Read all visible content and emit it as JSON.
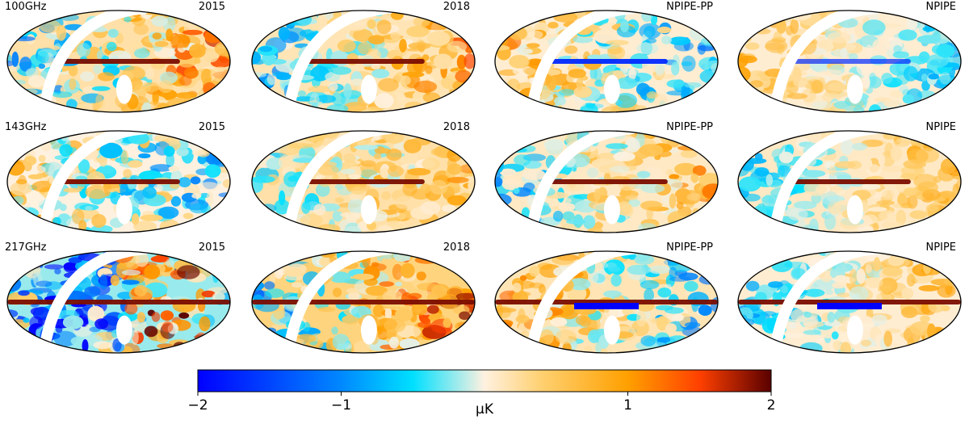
{
  "panels": {
    "rows": [
      {
        "frequency": "100GHz"
      },
      {
        "frequency": "143GHz"
      },
      {
        "frequency": "217GHz"
      }
    ],
    "columns": [
      {
        "release": "2015"
      },
      {
        "release": "2018"
      },
      {
        "release": "NPIPE-PP"
      },
      {
        "release": "NPIPE"
      }
    ],
    "projection": "mollweide"
  },
  "colorbar": {
    "min": -2,
    "max": 2,
    "ticks": [
      {
        "label": "−2",
        "value": -2
      },
      {
        "label": "−1",
        "value": -1
      },
      {
        "label": "1",
        "value": 1
      },
      {
        "label": "2",
        "value": 2
      }
    ],
    "unit": "μK",
    "colormap": [
      {
        "stop": 0.0,
        "color": "#0000ff"
      },
      {
        "stop": 0.25,
        "color": "#0088ff"
      },
      {
        "stop": 0.375,
        "color": "#00e0ff"
      },
      {
        "stop": 0.5,
        "color": "#fff1e0"
      },
      {
        "stop": 0.6,
        "color": "#ffd070"
      },
      {
        "stop": 0.75,
        "color": "#ffa000"
      },
      {
        "stop": 0.875,
        "color": "#ff4000"
      },
      {
        "stop": 1.0,
        "color": "#5a0000"
      }
    ]
  }
}
